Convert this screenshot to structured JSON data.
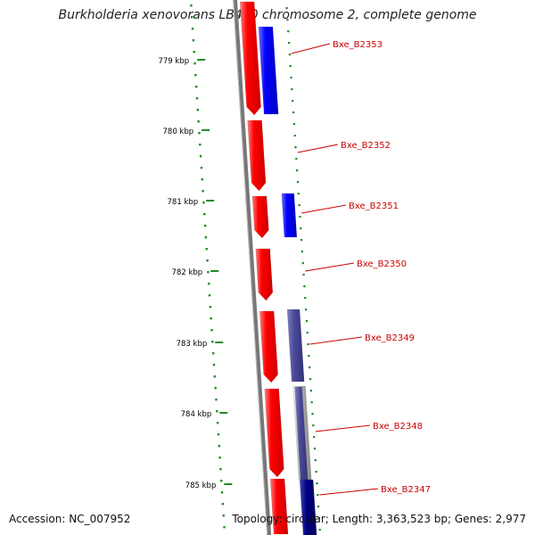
{
  "title": "Burkholderia xenovorans LB400 chromosome 2, complete genome",
  "accession": "Accession: NC_007952",
  "topology": "Topology: circular; Length: 3,363,523 bp; Genes: 2,977",
  "ruler": [
    {
      "label": "779 kbp"
    },
    {
      "label": "780 kbp"
    },
    {
      "label": "781 kbp"
    },
    {
      "label": "782 kbp"
    },
    {
      "label": "783 kbp"
    },
    {
      "label": "784 kbp"
    },
    {
      "label": "785 kbp"
    }
  ],
  "genes": [
    {
      "label": "Bxe_B2353"
    },
    {
      "label": "Bxe_B2352"
    },
    {
      "label": "Bxe_B2351"
    },
    {
      "label": "Bxe_B2350"
    },
    {
      "label": "Bxe_B2349"
    },
    {
      "label": "Bxe_B2348"
    },
    {
      "label": "Bxe_B2347"
    }
  ],
  "colors": {
    "gene_red": "#ff0000",
    "feature_blue": "#0000ff",
    "feature_slate": "#4a4a99",
    "feature_gray": "#aaaaaa",
    "feature_navy": "#000088",
    "label_red": "#cc0000",
    "ruler_green": "#228b22",
    "backbone": "#777777"
  }
}
